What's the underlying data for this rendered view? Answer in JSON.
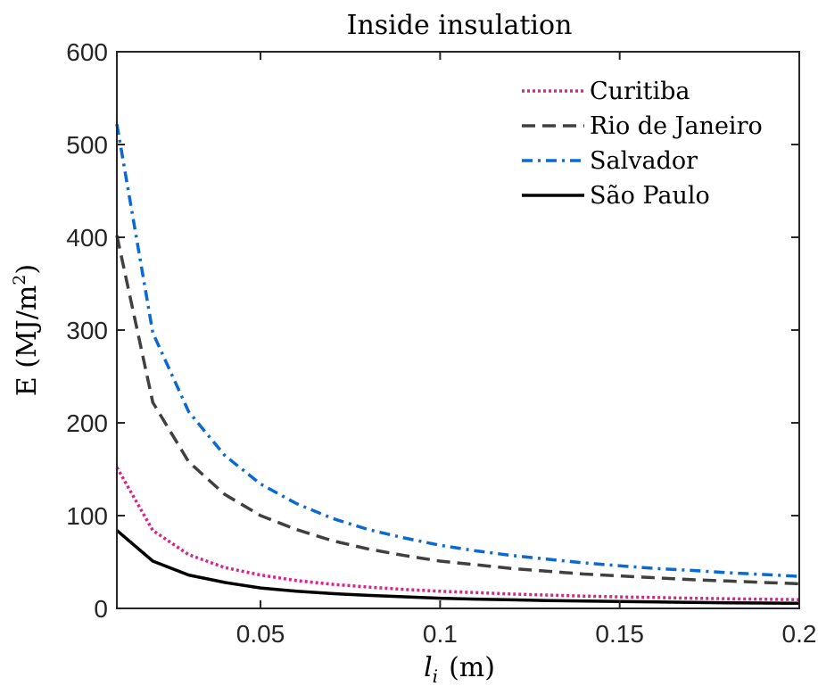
{
  "chart_data": {
    "type": "line",
    "title": "Inside insulation",
    "xlabel": "l",
    "xlabel_sub": "i",
    "xlabel_unit": "(m)",
    "ylabel": "E (MJ/m",
    "ylabel_sup": "2",
    "ylabel_close": ")",
    "xlim": [
      0.01,
      0.2
    ],
    "ylim": [
      0,
      600
    ],
    "xticks": [
      0.05,
      0.1,
      0.15,
      0.2
    ],
    "xtick_labels": [
      "0.05",
      "0.1",
      "0.15",
      "0.2"
    ],
    "yticks": [
      0,
      100,
      200,
      300,
      400,
      500,
      600
    ],
    "ytick_labels": [
      "0",
      "100",
      "200",
      "300",
      "400",
      "500",
      "600"
    ],
    "grid": false,
    "legend_position": "top-right",
    "x": [
      0.01,
      0.02,
      0.03,
      0.04,
      0.05,
      0.06,
      0.07,
      0.08,
      0.09,
      0.1,
      0.11,
      0.12,
      0.13,
      0.14,
      0.15,
      0.16,
      0.17,
      0.18,
      0.19,
      0.2
    ],
    "series": [
      {
        "name": "Curitiba",
        "color": "#e0208c",
        "style": "dotted",
        "values": [
          152,
          84,
          58,
          44,
          36,
          30,
          26,
          23,
          20.5,
          18.5,
          17,
          15.5,
          14.3,
          13.3,
          12.4,
          11.7,
          11,
          10.4,
          9.9,
          9.4
        ]
      },
      {
        "name": "Rio de Janeiro",
        "color": "#404040",
        "style": "dashed",
        "values": [
          402,
          222,
          158,
          123,
          100,
          85,
          73,
          64,
          57,
          51,
          47,
          43,
          40,
          37,
          35,
          33,
          31,
          29.5,
          28,
          26.5
        ]
      },
      {
        "name": "Salvador",
        "color": "#0a6ad2",
        "style": "dashdot",
        "values": [
          522,
          297,
          212,
          165,
          134,
          113,
          97,
          85,
          76,
          68,
          62,
          57,
          53,
          49,
          46,
          43,
          41,
          38.5,
          36.5,
          34.5
        ]
      },
      {
        "name": "São Paulo",
        "color": "#000000",
        "style": "solid",
        "values": [
          84,
          51,
          36,
          28,
          22,
          18.5,
          16,
          14,
          12.5,
          11,
          10,
          9.2,
          8.5,
          7.9,
          7.4,
          6.9,
          6.5,
          6.1,
          5.8,
          5.5
        ]
      }
    ]
  }
}
